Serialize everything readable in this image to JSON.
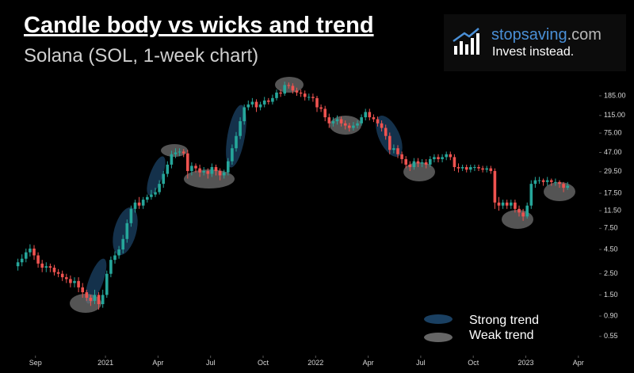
{
  "chart_data": {
    "type": "candlestick",
    "title": "Candle body vs wicks and trend",
    "subtitle": "Solana (SOL, 1-week chart)",
    "brand": {
      "name_main": "stopsaving",
      "name_suffix": ".com",
      "tagline": "Invest instead."
    },
    "legend": [
      "Strong trend",
      "Weak trend"
    ],
    "log_scale": true,
    "grid": false,
    "up_color": "#26a69a",
    "down_color": "#ef5350",
    "x": [
      "2020-08",
      "2020-08",
      "2020-08",
      "2020-08",
      "2020-09",
      "2020-09",
      "2020-09",
      "2020-09",
      "2020-10",
      "2020-10",
      "2020-10",
      "2020-10",
      "2020-10",
      "2020-11",
      "2020-11",
      "2020-11",
      "2020-11",
      "2020-12",
      "2020-12",
      "2020-12",
      "2020-12",
      "2020-12",
      "2021-01",
      "2021-01",
      "2021-01",
      "2021-01",
      "2021-02",
      "2021-02",
      "2021-02",
      "2021-02",
      "2021-03",
      "2021-03",
      "2021-03",
      "2021-03",
      "2021-03",
      "2021-04",
      "2021-04",
      "2021-04",
      "2021-04",
      "2021-05",
      "2021-05",
      "2021-05",
      "2021-05",
      "2021-06",
      "2021-06",
      "2021-06",
      "2021-06",
      "2021-06",
      "2021-07",
      "2021-07",
      "2021-07",
      "2021-07",
      "2021-08",
      "2021-08",
      "2021-08",
      "2021-08",
      "2021-09",
      "2021-09",
      "2021-09",
      "2021-09",
      "2021-09",
      "2021-10",
      "2021-10",
      "2021-10",
      "2021-10",
      "2021-10",
      "2021-11",
      "2021-11",
      "2021-11",
      "2021-11",
      "2021-12",
      "2021-12",
      "2021-12",
      "2021-12",
      "2022-01",
      "2022-01",
      "2022-01",
      "2022-01",
      "2022-01",
      "2022-02",
      "2022-02",
      "2022-02",
      "2022-02",
      "2022-03",
      "2022-03",
      "2022-03",
      "2022-03",
      "2022-04",
      "2022-04",
      "2022-04",
      "2022-04",
      "2022-05",
      "2022-05",
      "2022-05",
      "2022-05",
      "2022-05",
      "2022-06",
      "2022-06",
      "2022-06",
      "2022-06",
      "2022-07",
      "2022-07",
      "2022-07",
      "2022-07",
      "2022-08",
      "2022-08",
      "2022-08",
      "2022-08",
      "2022-08",
      "2022-09",
      "2022-09",
      "2022-09",
      "2022-09",
      "2022-10",
      "2022-10",
      "2022-10",
      "2022-10",
      "2022-10",
      "2022-11",
      "2022-11",
      "2022-11",
      "2022-11",
      "2022-12",
      "2022-12",
      "2022-12",
      "2022-12",
      "2023-01",
      "2023-01",
      "2023-01",
      "2023-01",
      "2023-01",
      "2023-02",
      "2023-02",
      "2023-02",
      "2023-02",
      "2023-03",
      "2023-03"
    ],
    "open": [
      3.0,
      3.3,
      3.6,
      4.2,
      4.6,
      3.9,
      3.2,
      2.9,
      3.0,
      2.9,
      2.6,
      2.5,
      2.3,
      2.2,
      2.0,
      2.1,
      1.8,
      1.6,
      1.4,
      1.3,
      1.5,
      1.2,
      1.5,
      2.5,
      3.5,
      3.9,
      4.5,
      5.8,
      8.5,
      12,
      14,
      13,
      15,
      16,
      17,
      18,
      22,
      28,
      35,
      45,
      47,
      48,
      46,
      30,
      34,
      32,
      29,
      30,
      28,
      33,
      30,
      27,
      29,
      38,
      52,
      70,
      100,
      140,
      150,
      160,
      140,
      150,
      165,
      160,
      175,
      200,
      195,
      240,
      235,
      210,
      200,
      195,
      180,
      180,
      175,
      140,
      135,
      110,
      95,
      100,
      105,
      95,
      90,
      85,
      90,
      95,
      110,
      125,
      110,
      105,
      95,
      85,
      70,
      50,
      52,
      45,
      40,
      35,
      33,
      38,
      36,
      37,
      35,
      40,
      42,
      40,
      42,
      45,
      42,
      33,
      32,
      33,
      31,
      33,
      33,
      32,
      31,
      32,
      30,
      14,
      13,
      14,
      13,
      14,
      12,
      11,
      10,
      13,
      22,
      24,
      24,
      23,
      24,
      23,
      23,
      22,
      20
    ],
    "high": [
      3.6,
      4.0,
      4.6,
      5.1,
      5.0,
      4.2,
      3.5,
      3.3,
      3.2,
      3.1,
      2.8,
      2.7,
      2.5,
      2.4,
      2.3,
      2.3,
      2.0,
      1.7,
      1.5,
      1.7,
      1.6,
      1.7,
      2.7,
      3.8,
      4.3,
      4.9,
      6.4,
      9.3,
      13,
      15,
      16,
      16,
      17,
      19,
      20,
      24,
      30,
      38,
      49,
      52,
      52,
      51,
      50,
      37,
      36,
      35,
      33,
      32,
      36,
      35,
      32,
      31,
      41,
      57,
      77,
      110,
      150,
      165,
      175,
      170,
      160,
      180,
      175,
      190,
      215,
      215,
      260,
      255,
      250,
      225,
      215,
      210,
      195,
      195,
      185,
      150,
      145,
      120,
      110,
      115,
      112,
      102,
      96,
      98,
      102,
      118,
      135,
      135,
      118,
      112,
      102,
      92,
      76,
      57,
      56,
      48,
      43,
      38,
      41,
      41,
      40,
      40,
      43,
      45,
      45,
      45,
      48,
      48,
      45,
      36,
      35,
      35,
      35,
      35,
      35,
      34,
      34,
      34,
      32,
      16,
      15,
      15,
      15,
      15,
      13,
      12,
      14,
      24,
      26,
      26,
      25,
      26,
      25,
      25,
      24,
      23,
      23
    ],
    "low": [
      2.7,
      3.0,
      3.3,
      3.8,
      3.5,
      2.9,
      2.6,
      2.6,
      2.6,
      2.4,
      2.3,
      2.1,
      2.0,
      1.8,
      1.8,
      1.6,
      1.4,
      1.3,
      1.15,
      1.2,
      1.05,
      1.1,
      1.4,
      2.3,
      3.2,
      3.6,
      4.1,
      5.3,
      7.8,
      11,
      12,
      12,
      14,
      15,
      16,
      17,
      20,
      26,
      32,
      41,
      43,
      42,
      25,
      27,
      29,
      26,
      27,
      25,
      26,
      27,
      24,
      25,
      27,
      35,
      48,
      65,
      92,
      130,
      140,
      125,
      130,
      140,
      150,
      150,
      165,
      180,
      185,
      220,
      195,
      185,
      180,
      165,
      165,
      160,
      125,
      125,
      100,
      85,
      88,
      92,
      88,
      82,
      78,
      80,
      84,
      90,
      102,
      102,
      98,
      88,
      78,
      64,
      45,
      46,
      41,
      36,
      32,
      30,
      31,
      33,
      33,
      32,
      33,
      37,
      37,
      37,
      39,
      39,
      30,
      29,
      30,
      29,
      29,
      30,
      30,
      29,
      29,
      28,
      12,
      11.5,
      12,
      12,
      12,
      11,
      10,
      9,
      9.5,
      12,
      20,
      22,
      21,
      21,
      21,
      21,
      20,
      18,
      19
    ],
    "close": [
      3.3,
      3.6,
      4.2,
      4.6,
      3.9,
      3.2,
      2.9,
      3.0,
      2.9,
      2.6,
      2.5,
      2.3,
      2.2,
      2.0,
      2.1,
      1.8,
      1.6,
      1.4,
      1.3,
      1.5,
      1.2,
      1.5,
      2.5,
      3.5,
      3.9,
      4.5,
      5.8,
      8.5,
      12,
      14,
      13,
      15,
      16,
      17,
      18,
      22,
      28,
      35,
      45,
      47,
      48,
      46,
      30,
      34,
      32,
      29,
      30,
      28,
      33,
      30,
      27,
      29,
      38,
      52,
      70,
      100,
      140,
      150,
      160,
      140,
      150,
      165,
      160,
      175,
      200,
      195,
      240,
      235,
      210,
      200,
      195,
      180,
      180,
      175,
      140,
      135,
      110,
      95,
      100,
      105,
      95,
      90,
      85,
      90,
      95,
      110,
      125,
      110,
      105,
      95,
      85,
      70,
      50,
      52,
      45,
      40,
      35,
      33,
      38,
      36,
      37,
      35,
      40,
      42,
      40,
      42,
      45,
      42,
      33,
      32,
      33,
      31,
      33,
      33,
      32,
      31,
      32,
      30,
      14,
      13,
      14,
      13,
      14,
      12,
      11,
      10,
      13,
      22,
      24,
      24,
      23,
      24,
      23,
      23,
      22,
      20,
      21
    ],
    "xticks": [
      {
        "value": "2020-09",
        "label": "Sep"
      },
      {
        "value": "2021-01",
        "label": "2021"
      },
      {
        "value": "2021-04",
        "label": "Apr"
      },
      {
        "value": "2021-07",
        "label": "Jul"
      },
      {
        "value": "2021-10",
        "label": "Oct"
      },
      {
        "value": "2022-01",
        "label": "2022"
      },
      {
        "value": "2022-04",
        "label": "Apr"
      },
      {
        "value": "2022-07",
        "label": "Jul"
      },
      {
        "value": "2022-10",
        "label": "Oct"
      },
      {
        "value": "2023-01",
        "label": "2023"
      },
      {
        "value": "2023-04",
        "label": "Apr"
      }
    ],
    "ylim": [
      0.37,
      300
    ],
    "yticks": [
      {
        "value": 185,
        "label": "185.00"
      },
      {
        "value": 115,
        "label": "115.00"
      },
      {
        "value": 75,
        "label": "75.00"
      },
      {
        "value": 47,
        "label": "47.00"
      },
      {
        "value": 29.5,
        "label": "29.50"
      },
      {
        "value": 17.5,
        "label": "17.50"
      },
      {
        "value": 11.5,
        "label": "11.50"
      },
      {
        "value": 7.5,
        "label": "7.50"
      },
      {
        "value": 4.5,
        "label": "4.50"
      },
      {
        "value": 2.5,
        "label": "2.50"
      },
      {
        "value": 1.5,
        "label": "1.50"
      },
      {
        "value": 0.9,
        "label": "0.90"
      },
      {
        "value": 0.55,
        "label": "0.55"
      }
    ]
  }
}
